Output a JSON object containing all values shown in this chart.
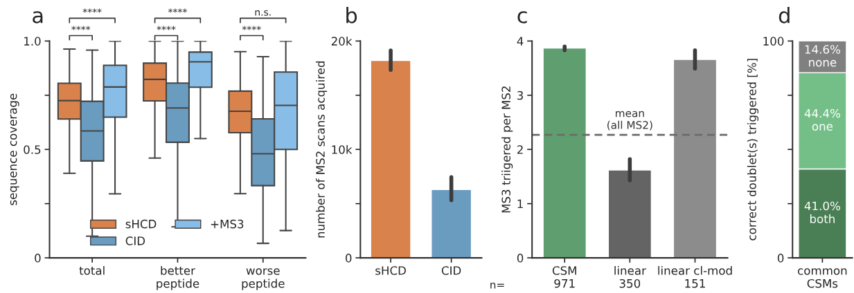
{
  "chart_data": [
    {
      "type": "box",
      "title": "a",
      "ylabel": "sequence coverage",
      "categories": [
        "total",
        "better\npeptide",
        "worse\npeptide"
      ],
      "series": [
        {
          "name": "sHCD",
          "color": "#d9824b",
          "boxes": [
            {
              "low": 0.39,
              "q1": 0.64,
              "median": 0.725,
              "q3": 0.805,
              "high": 0.963
            },
            {
              "low": 0.46,
              "q1": 0.724,
              "median": 0.823,
              "q3": 0.898,
              "high": 1.0
            },
            {
              "low": 0.296,
              "q1": 0.577,
              "median": 0.676,
              "q3": 0.769,
              "high": 0.951
            }
          ]
        },
        {
          "name": "CID",
          "color": "#6a9cc0",
          "boxes": [
            {
              "low": 0.1,
              "q1": 0.447,
              "median": 0.585,
              "q3": 0.722,
              "high": 0.958
            },
            {
              "low": 0.143,
              "q1": 0.533,
              "median": 0.691,
              "q3": 0.806,
              "high": 1.0
            },
            {
              "low": 0.067,
              "q1": 0.333,
              "median": 0.48,
              "q3": 0.641,
              "high": 0.928
            }
          ]
        },
        {
          "name": "+MS3",
          "color": "#87bde6",
          "boxes": [
            {
              "low": 0.295,
              "q1": 0.649,
              "median": 0.788,
              "q3": 0.888,
              "high": 1.0
            },
            {
              "low": 0.55,
              "q1": 0.787,
              "median": 0.904,
              "q3": 0.949,
              "high": 1.0
            },
            {
              "low": 0.126,
              "q1": 0.5,
              "median": 0.703,
              "q3": 0.857,
              "high": 1.0
            }
          ]
        }
      ],
      "ylim": [
        0,
        1.0
      ],
      "yticks": [
        {
          "value": 0,
          "label": "0"
        },
        {
          "value": 0.25,
          "label": null
        },
        {
          "value": 0.5,
          "label": "0.5"
        },
        {
          "value": 0.75,
          "label": null
        },
        {
          "value": 1.0,
          "label": "1.0"
        }
      ],
      "legend": "bottom",
      "grid": false,
      "annotations": [
        "****",
        "****",
        "****",
        "****",
        "****",
        "n.s."
      ]
    },
    {
      "type": "bar",
      "title": "b",
      "ylabel": "number of MS2 scans acquired",
      "categories": [
        "sHCD",
        "CID"
      ],
      "values": [
        18200,
        6300
      ],
      "colors": [
        "#d9824b",
        "#6a9cc0"
      ],
      "errors": [
        [
          17330,
          19130
        ],
        [
          5320,
          7440
        ]
      ],
      "ylim": [
        0,
        20000
      ],
      "yticks": [
        {
          "value": 0,
          "label": "0"
        },
        {
          "value": 5000,
          "label": null
        },
        {
          "value": 10000,
          "label": "10k"
        },
        {
          "value": 15000,
          "label": null
        },
        {
          "value": 20000,
          "label": "20k"
        }
      ],
      "grid": false
    },
    {
      "type": "bar",
      "title": "c",
      "ylabel": "MS3 triigered per MS2",
      "categories": [
        "CSM\n971",
        "linear\n350",
        "linear cl-mod\n151"
      ],
      "values": [
        3.87,
        1.62,
        3.66
      ],
      "colors": [
        "#5f9e6e",
        "#646464",
        "#8c8c8c"
      ],
      "errors": [
        [
          3.83,
          3.9
        ],
        [
          1.43,
          1.82
        ],
        [
          3.49,
          3.83
        ]
      ],
      "ylim": [
        0,
        4
      ],
      "yticks": [
        0,
        1,
        2,
        3,
        4
      ],
      "grid": false,
      "ref_lines": [
        {
          "axis": "y",
          "value": 2.27,
          "label": "mean\n(all MS2)",
          "color": "#6b6b6b",
          "line_style": "dashed"
        }
      ],
      "annotations": [
        "n="
      ]
    },
    {
      "type": "bar",
      "title": "d",
      "ylabel": "correct doublet(s) triggered [%]",
      "categories": [
        "common\nCSMs"
      ],
      "stacked": true,
      "series": [
        {
          "color": "#4a7f55",
          "values": [
            41.0
          ],
          "value_labels": [
            "41.0%\nboth"
          ]
        },
        {
          "color": "#74bf88",
          "values": [
            44.4
          ],
          "value_labels": [
            "44.4%\none"
          ]
        },
        {
          "color": "#808080",
          "values": [
            14.6
          ],
          "value_labels": [
            "14.6%\nnone"
          ]
        }
      ],
      "ylim": [
        0,
        100
      ],
      "yticks": [
        {
          "value": 0,
          "label": "0"
        },
        {
          "value": 25,
          "label": null
        },
        {
          "value": 50,
          "label": null
        },
        {
          "value": 75,
          "label": null
        },
        {
          "value": 100,
          "label": "100"
        }
      ],
      "grid": false
    }
  ]
}
